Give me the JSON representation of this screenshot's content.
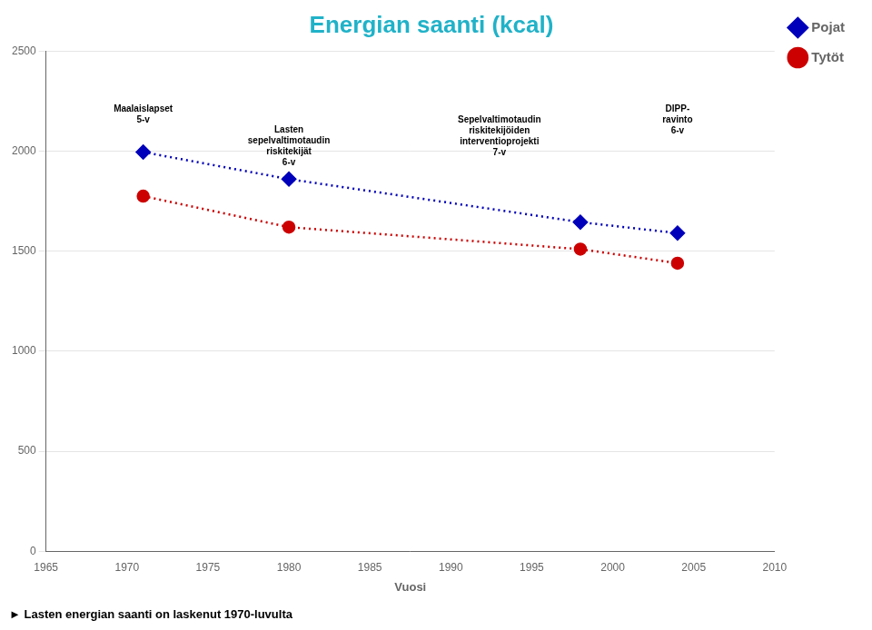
{
  "chart_data": {
    "type": "line",
    "title": "Energian saanti (kcal)",
    "title_color": "#20B2C8",
    "x_label": "Vuosi",
    "x": [
      1971,
      1980,
      1998,
      2004
    ],
    "series": [
      {
        "name": "Pojat",
        "color": "#0000BB",
        "values": [
          1995,
          1860,
          1645,
          1590
        ],
        "marker": "diamond",
        "line_style": "dotted"
      },
      {
        "name": "Tytöt",
        "color": "#CC0000",
        "values": [
          1775,
          1620,
          1510,
          1440
        ],
        "marker": "circle",
        "line_style": "dotted"
      }
    ],
    "xlim": [
      1965,
      2010
    ],
    "ylim": [
      0,
      2500
    ],
    "xticks": [
      1965,
      1970,
      1975,
      1980,
      1985,
      1990,
      1995,
      2000,
      2005,
      2010
    ],
    "yticks": [
      0,
      500,
      1000,
      1500,
      2000,
      2500
    ],
    "grid": "y",
    "legend": "right",
    "annotations": [
      {
        "text": "Maalaislapset\n5-v",
        "x": 1971,
        "y": 2230
      },
      {
        "text": "Lasten\nsepelvaltimotaudin\nriskitekijät\n6-v",
        "x": 1980,
        "y": 2130
      },
      {
        "text": "Sepelvaltimotaudin\nriskitekijöiden\ninterventioprojekti\n7-v",
        "x": 1993,
        "y": 2180
      },
      {
        "text": "DIPP-\nravinto\n6-v",
        "x": 2004,
        "y": 2230
      }
    ],
    "footer": "► Lasten energian saanti on laskenut 1970-luvulta"
  }
}
